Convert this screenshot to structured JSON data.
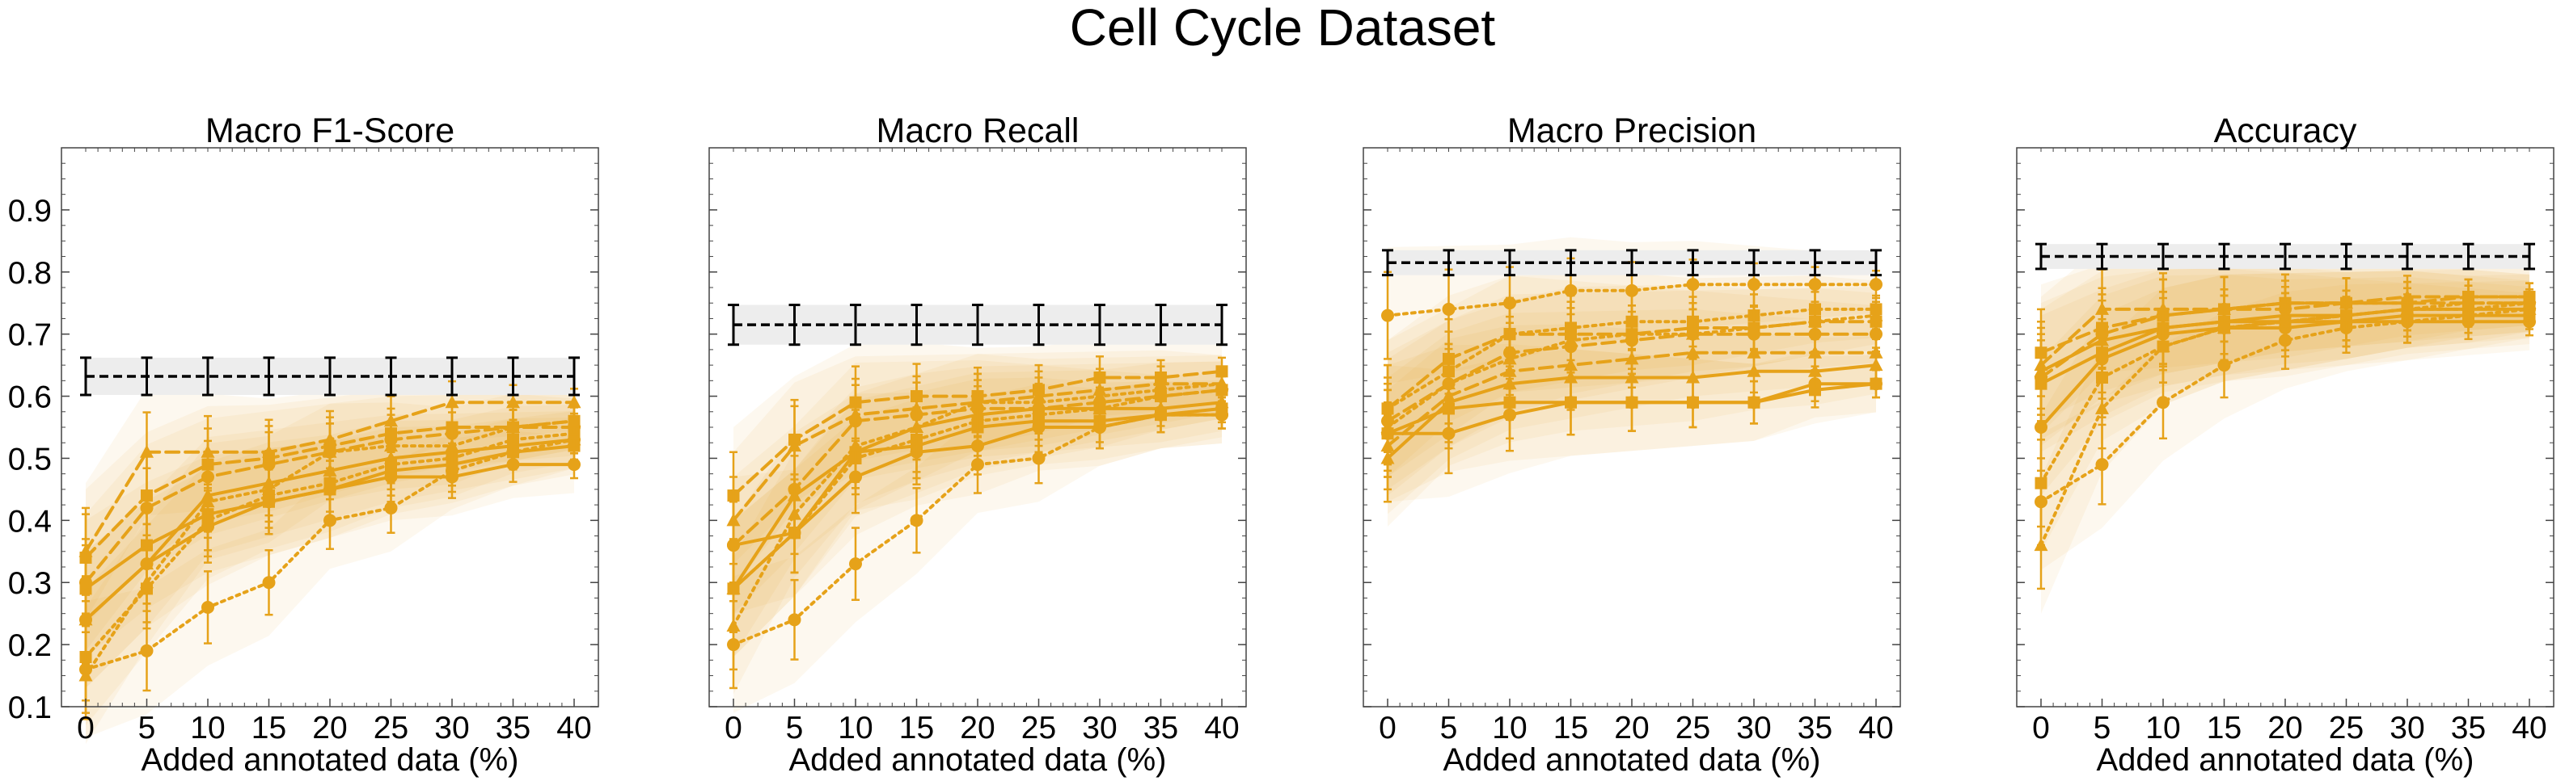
{
  "suptitle": "Cell Cycle Dataset",
  "colors": {
    "series": "#E6A219",
    "band": "#FCEFCF",
    "baseline_band": "#EDEDED",
    "baseline": "#000000"
  },
  "chart_data": [
    {
      "type": "line",
      "title": "Macro F1-Score",
      "xlabel": "Added annotated data (%)",
      "x": [
        0,
        5,
        10,
        15,
        20,
        25,
        30,
        35,
        40
      ],
      "ylim": [
        0.1,
        1.0
      ],
      "yticks": [
        0.1,
        0.2,
        0.3,
        0.4,
        0.5,
        0.6,
        0.7,
        0.8,
        0.9
      ],
      "show_yticklabels": true,
      "baseline": {
        "value": 0.632,
        "error": 0.03
      },
      "series": [
        {
          "style": "solid",
          "marker": "circle",
          "values": [
            0.24,
            0.33,
            0.39,
            0.43,
            0.45,
            0.47,
            0.47,
            0.49,
            0.49
          ]
        },
        {
          "style": "solid",
          "marker": "square",
          "values": [
            0.29,
            0.36,
            0.41,
            0.43,
            0.45,
            0.48,
            0.49,
            0.51,
            0.52
          ]
        },
        {
          "style": "solid",
          "marker": "triangle",
          "values": [
            0.24,
            0.33,
            0.44,
            0.46,
            0.48,
            0.5,
            0.51,
            0.52,
            0.53
          ]
        },
        {
          "style": "dashed",
          "marker": "square",
          "values": [
            0.34,
            0.44,
            0.49,
            0.5,
            0.52,
            0.54,
            0.55,
            0.55,
            0.56
          ]
        },
        {
          "style": "dashed",
          "marker": "triangle",
          "values": [
            0.35,
            0.51,
            0.51,
            0.51,
            0.53,
            0.56,
            0.59,
            0.59,
            0.59
          ]
        },
        {
          "style": "dashed",
          "marker": "circle",
          "values": [
            0.3,
            0.42,
            0.47,
            0.49,
            0.51,
            0.53,
            0.54,
            0.55,
            0.55
          ]
        },
        {
          "style": "dotted",
          "marker": "circle",
          "values": [
            0.16,
            0.19,
            0.26,
            0.3,
            0.4,
            0.42,
            0.48,
            0.51,
            0.53
          ]
        },
        {
          "style": "dotted",
          "marker": "square",
          "values": [
            0.18,
            0.29,
            0.4,
            0.44,
            0.46,
            0.49,
            0.5,
            0.53,
            0.54
          ]
        },
        {
          "style": "dotted",
          "marker": "triangle",
          "values": [
            0.15,
            0.3,
            0.43,
            0.45,
            0.51,
            0.52,
            0.52,
            0.55,
            0.56
          ]
        }
      ]
    },
    {
      "type": "line",
      "title": "Macro Recall",
      "xlabel": "Added annotated data (%)",
      "x": [
        0,
        5,
        10,
        15,
        20,
        25,
        30,
        35,
        40
      ],
      "ylim": [
        0.1,
        1.0
      ],
      "yticks": [
        0.1,
        0.2,
        0.3,
        0.4,
        0.5,
        0.6,
        0.7,
        0.8,
        0.9
      ],
      "show_yticklabels": false,
      "baseline": {
        "value": 0.715,
        "error": 0.032
      },
      "series": [
        {
          "style": "solid",
          "marker": "circle",
          "values": [
            0.36,
            0.38,
            0.47,
            0.51,
            0.52,
            0.55,
            0.55,
            0.57,
            0.57
          ]
        },
        {
          "style": "solid",
          "marker": "square",
          "values": [
            0.29,
            0.38,
            0.51,
            0.52,
            0.55,
            0.56,
            0.56,
            0.57,
            0.58
          ]
        },
        {
          "style": "solid",
          "marker": "triangle",
          "values": [
            0.29,
            0.44,
            0.51,
            0.55,
            0.57,
            0.58,
            0.58,
            0.58,
            0.59
          ]
        },
        {
          "style": "dashed",
          "marker": "square",
          "values": [
            0.44,
            0.53,
            0.59,
            0.6,
            0.6,
            0.61,
            0.63,
            0.63,
            0.64
          ]
        },
        {
          "style": "dashed",
          "marker": "triangle",
          "values": [
            0.4,
            0.52,
            0.57,
            0.58,
            0.59,
            0.6,
            0.61,
            0.62,
            0.62
          ]
        },
        {
          "style": "dashed",
          "marker": "circle",
          "values": [
            0.36,
            0.45,
            0.56,
            0.57,
            0.58,
            0.58,
            0.59,
            0.6,
            0.61
          ]
        },
        {
          "style": "dotted",
          "marker": "circle",
          "values": [
            0.2,
            0.24,
            0.33,
            0.4,
            0.49,
            0.5,
            0.55,
            0.57,
            0.57
          ]
        },
        {
          "style": "dotted",
          "marker": "square",
          "values": [
            0.29,
            0.38,
            0.5,
            0.53,
            0.56,
            0.57,
            0.58,
            0.6,
            0.61
          ]
        },
        {
          "style": "dotted",
          "marker": "triangle",
          "values": [
            0.23,
            0.41,
            0.52,
            0.55,
            0.59,
            0.59,
            0.6,
            0.61,
            0.62
          ]
        }
      ]
    },
    {
      "type": "line",
      "title": "Macro Precision",
      "xlabel": "Added annotated data (%)",
      "x": [
        0,
        5,
        10,
        15,
        20,
        25,
        30,
        35,
        40
      ],
      "ylim": [
        0.1,
        1.0
      ],
      "yticks": [
        0.1,
        0.2,
        0.3,
        0.4,
        0.5,
        0.6,
        0.7,
        0.8,
        0.9
      ],
      "show_yticklabels": false,
      "baseline": {
        "value": 0.815,
        "error": 0.02
      },
      "series": [
        {
          "style": "solid",
          "marker": "circle",
          "values": [
            0.54,
            0.54,
            0.57,
            0.59,
            0.59,
            0.59,
            0.59,
            0.62,
            0.62
          ]
        },
        {
          "style": "solid",
          "marker": "square",
          "values": [
            0.54,
            0.58,
            0.59,
            0.59,
            0.59,
            0.59,
            0.59,
            0.61,
            0.62
          ]
        },
        {
          "style": "solid",
          "marker": "triangle",
          "values": [
            0.5,
            0.59,
            0.62,
            0.63,
            0.63,
            0.63,
            0.64,
            0.64,
            0.65
          ]
        },
        {
          "style": "dashed",
          "marker": "square",
          "values": [
            0.58,
            0.66,
            0.7,
            0.7,
            0.7,
            0.71,
            0.71,
            0.72,
            0.72
          ]
        },
        {
          "style": "dashed",
          "marker": "triangle",
          "values": [
            0.52,
            0.6,
            0.64,
            0.65,
            0.66,
            0.67,
            0.67,
            0.67,
            0.67
          ]
        },
        {
          "style": "dashed",
          "marker": "circle",
          "values": [
            0.56,
            0.62,
            0.67,
            0.68,
            0.69,
            0.7,
            0.7,
            0.7,
            0.7
          ]
        },
        {
          "style": "dotted",
          "marker": "circle",
          "values": [
            0.73,
            0.74,
            0.75,
            0.77,
            0.77,
            0.78,
            0.78,
            0.78,
            0.78
          ]
        },
        {
          "style": "dotted",
          "marker": "square",
          "values": [
            0.58,
            0.64,
            0.7,
            0.71,
            0.72,
            0.72,
            0.73,
            0.74,
            0.74
          ]
        },
        {
          "style": "dotted",
          "marker": "triangle",
          "values": [
            0.55,
            0.62,
            0.66,
            0.69,
            0.7,
            0.7,
            0.71,
            0.72,
            0.73
          ]
        }
      ]
    },
    {
      "type": "line",
      "title": "Accuracy",
      "xlabel": "Added annotated data (%)",
      "x": [
        0,
        5,
        10,
        15,
        20,
        25,
        30,
        35,
        40
      ],
      "ylim": [
        0.1,
        1.0
      ],
      "yticks": [
        0.1,
        0.2,
        0.3,
        0.4,
        0.5,
        0.6,
        0.7,
        0.8,
        0.9
      ],
      "show_yticklabels": false,
      "baseline": {
        "value": 0.825,
        "error": 0.02
      },
      "series": [
        {
          "style": "solid",
          "marker": "circle",
          "values": [
            0.55,
            0.66,
            0.7,
            0.71,
            0.71,
            0.72,
            0.72,
            0.72,
            0.72
          ]
        },
        {
          "style": "solid",
          "marker": "square",
          "values": [
            0.62,
            0.67,
            0.71,
            0.72,
            0.72,
            0.72,
            0.73,
            0.73,
            0.73
          ]
        },
        {
          "style": "solid",
          "marker": "triangle",
          "values": [
            0.64,
            0.69,
            0.71,
            0.72,
            0.73,
            0.73,
            0.74,
            0.74,
            0.74
          ]
        },
        {
          "style": "dashed",
          "marker": "square",
          "values": [
            0.67,
            0.71,
            0.73,
            0.74,
            0.75,
            0.75,
            0.75,
            0.76,
            0.76
          ]
        },
        {
          "style": "dashed",
          "marker": "triangle",
          "values": [
            0.65,
            0.74,
            0.74,
            0.74,
            0.75,
            0.75,
            0.76,
            0.76,
            0.76
          ]
        },
        {
          "style": "dashed",
          "marker": "circle",
          "values": [
            0.63,
            0.7,
            0.73,
            0.74,
            0.74,
            0.75,
            0.75,
            0.75,
            0.75
          ]
        },
        {
          "style": "dotted",
          "marker": "circle",
          "values": [
            0.43,
            0.49,
            0.59,
            0.65,
            0.69,
            0.71,
            0.72,
            0.73,
            0.74
          ]
        },
        {
          "style": "dotted",
          "marker": "square",
          "values": [
            0.46,
            0.63,
            0.68,
            0.71,
            0.72,
            0.73,
            0.74,
            0.74,
            0.75
          ]
        },
        {
          "style": "dotted",
          "marker": "triangle",
          "values": [
            0.36,
            0.58,
            0.68,
            0.71,
            0.72,
            0.73,
            0.74,
            0.75,
            0.75
          ]
        }
      ]
    }
  ]
}
